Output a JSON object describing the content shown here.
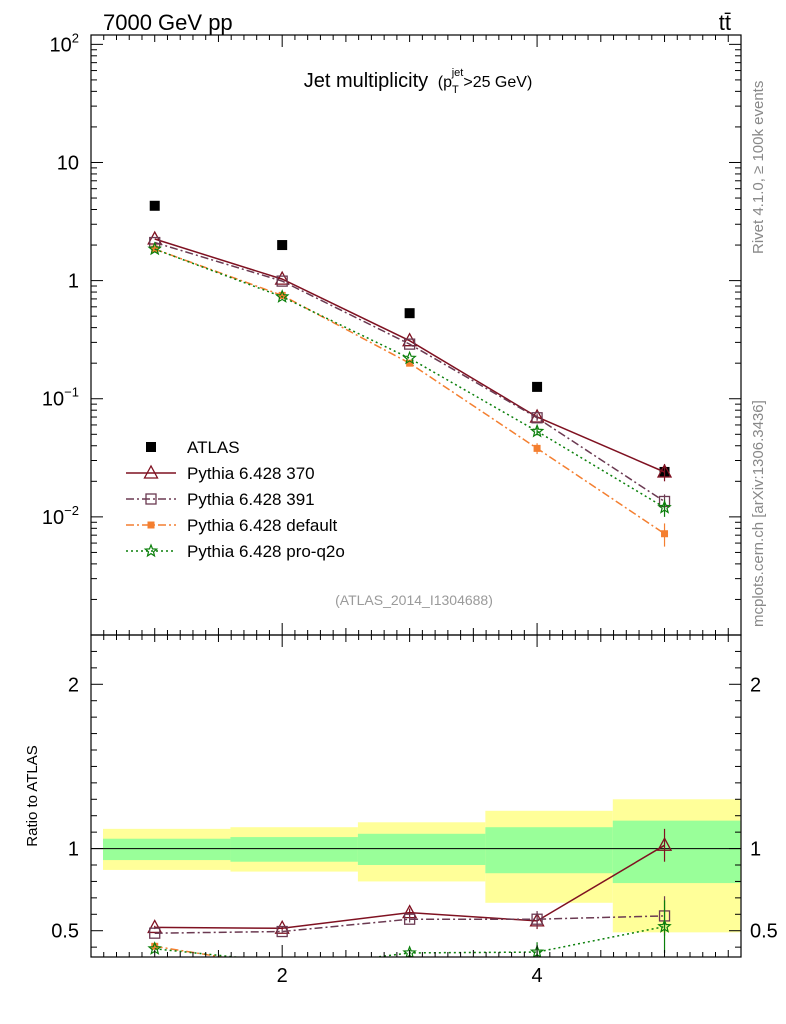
{
  "header": {
    "energy_label": "7000 GeV pp",
    "process_label": "tt̄"
  },
  "side_labels": {
    "rivet": "Rivet 4.1.0, ≥ 100k events",
    "mcplots": "mcplots.cern.ch [arXiv:1306.3436]"
  },
  "colors": {
    "atlas": "#000000",
    "p370": "#7f1121",
    "p391": "#6b3a52",
    "pdefault": "#f47f30",
    "pq2o": "#0a7f0a",
    "band_inner": "#99ff99",
    "band_outer": "#ffff99"
  },
  "chart_data": [
    {
      "type": "line",
      "title": "Jet multiplicity",
      "title_suffix": {
        "open": "(p",
        "sub": "T",
        "sup": "jet",
        "close": ">25 GeV)"
      },
      "analysis_tag": "(ATLAS_2014_I1304688)",
      "yscale": "log",
      "xlim": [
        0.5,
        5.6
      ],
      "ylim": [
        0.001,
        120
      ],
      "ytick_labels": [
        {
          "value": 100,
          "base": "10",
          "exp": "2"
        },
        {
          "value": 10,
          "base": "10",
          "exp": ""
        },
        {
          "value": 1,
          "base": "1",
          "exp": ""
        },
        {
          "value": 0.1,
          "base": "10",
          "exp": "−1"
        },
        {
          "value": 0.01,
          "base": "10",
          "exp": "−2"
        }
      ],
      "legend_position": "bottom-left",
      "series": [
        {
          "key": "atlas",
          "name": "ATLAS",
          "style": "data",
          "marker": "square-filled",
          "x": [
            1,
            2,
            3,
            4,
            5
          ],
          "y": [
            4.3,
            2.0,
            0.53,
            0.126,
            0.024
          ],
          "yerr": [
            0,
            0,
            0,
            0,
            0.002
          ]
        },
        {
          "key": "p370",
          "name": "Pythia 6.428 370",
          "style": "solid",
          "marker": "triangle-open",
          "x": [
            1,
            2,
            3,
            4,
            5
          ],
          "y": [
            2.25,
            1.03,
            0.31,
            0.07,
            0.024
          ],
          "yerr": [
            0,
            0,
            0,
            0.004,
            0.004
          ]
        },
        {
          "key": "p391",
          "name": "Pythia 6.428 391",
          "style": "dashdot",
          "marker": "square-open",
          "x": [
            1,
            2,
            3,
            4,
            5
          ],
          "y": [
            2.1,
            0.99,
            0.29,
            0.069,
            0.0135
          ],
          "yerr": [
            0,
            0,
            0,
            0.004,
            0.002
          ]
        },
        {
          "key": "pdefault",
          "name": "Pythia 6.428 default",
          "style": "dashdot",
          "marker": "square-filled",
          "x": [
            1,
            2,
            3,
            4,
            5
          ],
          "y": [
            1.85,
            0.75,
            0.2,
            0.038,
            0.0072
          ],
          "yerr": [
            0,
            0,
            0,
            0.004,
            0.0016
          ]
        },
        {
          "key": "pq2o",
          "name": "Pythia 6.428 pro-q2o",
          "style": "dotted",
          "marker": "star-open",
          "x": [
            1,
            2,
            3,
            4,
            5
          ],
          "y": [
            1.85,
            0.73,
            0.22,
            0.053,
            0.012
          ],
          "yerr": [
            0,
            0,
            0,
            0.004,
            0.002
          ]
        }
      ]
    },
    {
      "type": "line",
      "ylabel": "Ratio to ATLAS",
      "xlim": [
        0.5,
        5.6
      ],
      "ylim": [
        0.34,
        2.3
      ],
      "xticks": [
        2,
        4
      ],
      "yticks": [
        0.5,
        1,
        2
      ],
      "bands": [
        {
          "x": [
            0.5,
            1.5
          ],
          "inner": [
            0.93,
            1.06
          ],
          "outer": [
            0.87,
            1.12
          ]
        },
        {
          "x": [
            1.5,
            2.5
          ],
          "inner": [
            0.92,
            1.07
          ],
          "outer": [
            0.86,
            1.13
          ]
        },
        {
          "x": [
            2.5,
            3.5
          ],
          "inner": [
            0.9,
            1.09
          ],
          "outer": [
            0.8,
            1.16
          ]
        },
        {
          "x": [
            3.5,
            4.5
          ],
          "inner": [
            0.85,
            1.13
          ],
          "outer": [
            0.67,
            1.23
          ]
        },
        {
          "x": [
            4.5,
            5.5
          ],
          "inner": [
            0.79,
            1.17
          ],
          "outer": [
            0.49,
            1.3
          ]
        }
      ],
      "series": [
        {
          "key": "p370",
          "x": [
            1,
            2,
            3,
            4,
            5
          ],
          "y": [
            0.52,
            0.515,
            0.61,
            0.56,
            1.02
          ],
          "yerr": [
            0.01,
            0.01,
            0.025,
            0.05,
            0.1
          ]
        },
        {
          "key": "p391",
          "x": [
            1,
            2,
            3,
            4,
            5
          ],
          "y": [
            0.485,
            0.495,
            0.57,
            0.57,
            0.59
          ],
          "yerr": [
            0,
            0.01,
            0.02,
            0.05,
            0.12
          ]
        },
        {
          "key": "pdefault",
          "x": [
            1,
            1.6
          ],
          "y": [
            0.405,
            0.33
          ],
          "yerr": [
            0,
            0
          ]
        },
        {
          "key": "pq2o",
          "x": [
            1,
            1.75,
            2.65,
            3,
            4,
            5
          ],
          "y": [
            0.39,
            0.33,
            0.33,
            0.365,
            0.37,
            0.525
          ],
          "yerr": [
            0,
            0,
            0,
            0.02,
            0.06,
            0.16
          ]
        }
      ]
    }
  ]
}
